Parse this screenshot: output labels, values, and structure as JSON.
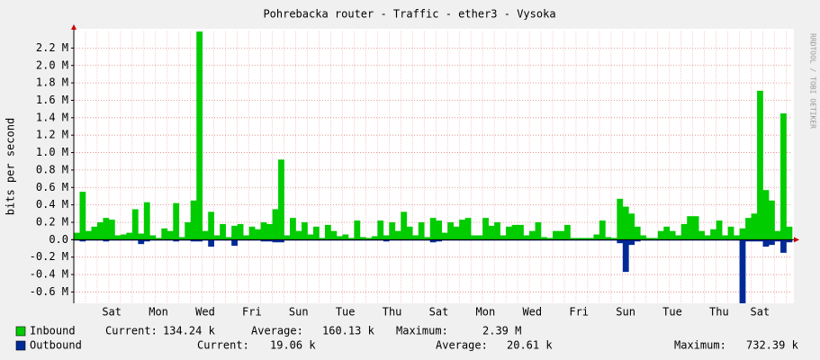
{
  "chart_data": {
    "type": "area-bars",
    "title": "Pohrebacka router - Traffic - ether3 - Vysoka",
    "y_label": "bits per second",
    "side_text": "RRDTOOL / TOBI OETIKER",
    "categories": [
      null,
      null,
      null,
      null,
      null,
      null,
      "Sat",
      null,
      null,
      null,
      null,
      null,
      null,
      null,
      "Mon",
      null,
      null,
      null,
      null,
      null,
      null,
      null,
      "Wed",
      null,
      null,
      null,
      null,
      null,
      null,
      null,
      "Fri",
      null,
      null,
      null,
      null,
      null,
      null,
      null,
      "Sun",
      null,
      null,
      null,
      null,
      null,
      null,
      null,
      "Tue",
      null,
      null,
      null,
      null,
      null,
      null,
      null,
      "Thu",
      null,
      null,
      null,
      null,
      null,
      null,
      null,
      "Sat",
      null,
      null,
      null,
      null,
      null,
      null,
      null,
      "Mon",
      null,
      null,
      null,
      null,
      null,
      null,
      null,
      "Wed",
      null,
      null,
      null,
      null,
      null,
      null,
      null,
      "Fri",
      null,
      null,
      null,
      null,
      null,
      null,
      null,
      "Sun",
      null,
      null,
      null,
      null,
      null,
      null,
      null,
      "Tue",
      null,
      null,
      null,
      null,
      null,
      null,
      null,
      "Thu",
      null,
      null,
      null,
      null,
      null,
      null,
      "Sat",
      null,
      null,
      null,
      null,
      null
    ],
    "ylim": [
      -0.73,
      2.39
    ],
    "yticks": [
      {
        "value": 2.2,
        "label": "2.2 M"
      },
      {
        "value": 2.0,
        "label": "2.0 M"
      },
      {
        "value": 1.8,
        "label": "1.8 M"
      },
      {
        "value": 1.6,
        "label": "1.6 M"
      },
      {
        "value": 1.4,
        "label": "1.4 M"
      },
      {
        "value": 1.2,
        "label": "1.2 M"
      },
      {
        "value": 1.0,
        "label": "1.0 M"
      },
      {
        "value": 0.8,
        "label": "0.8 M"
      },
      {
        "value": 0.6,
        "label": "0.6 M"
      },
      {
        "value": 0.4,
        "label": "0.4 M"
      },
      {
        "value": 0.2,
        "label": "0.2 M"
      },
      {
        "value": 0,
        "label": "0.0"
      },
      {
        "value": -0.2,
        "label": "-0.2 M"
      },
      {
        "value": -0.4,
        "label": "-0.4 M"
      },
      {
        "value": -0.6,
        "label": "-0.6 M"
      }
    ],
    "grid": true,
    "series": [
      {
        "name": "Inbound",
        "color": "#00cc00",
        "stats": [
          {
            "label": "Current:",
            "text": "134.24 k"
          },
          {
            "label": "Average:",
            "text": "160.13 k"
          },
          {
            "label": "Maximum:",
            "text": "2.39 M"
          }
        ],
        "values": [
          0.08,
          0.55,
          0.1,
          0.15,
          0.2,
          0.25,
          0.23,
          0.05,
          0.06,
          0.08,
          0.35,
          0.07,
          0.43,
          0.05,
          0.02,
          0.13,
          0.1,
          0.42,
          0.03,
          0.2,
          0.45,
          2.39,
          0.1,
          0.32,
          0.05,
          0.18,
          0.03,
          0.16,
          0.18,
          0.05,
          0.15,
          0.12,
          0.2,
          0.18,
          0.35,
          0.92,
          0.05,
          0.25,
          0.1,
          0.2,
          0.06,
          0.15,
          0.02,
          0.17,
          0.1,
          0.04,
          0.06,
          0.02,
          0.22,
          0.03,
          0.02,
          0.04,
          0.22,
          0.05,
          0.2,
          0.1,
          0.32,
          0.15,
          0.05,
          0.2,
          0.03,
          0.25,
          0.22,
          0.08,
          0.2,
          0.15,
          0.23,
          0.25,
          0.05,
          0.05,
          0.25,
          0.16,
          0.2,
          0.05,
          0.15,
          0.17,
          0.17,
          0.05,
          0.1,
          0.2,
          0.03,
          0.02,
          0.1,
          0.1,
          0.17,
          0.02,
          0.02,
          0.02,
          0.02,
          0.06,
          0.22,
          0.03,
          0.02,
          0.47,
          0.38,
          0.3,
          0.15,
          0.05,
          0.02,
          0.02,
          0.1,
          0.15,
          0.1,
          0.05,
          0.18,
          0.27,
          0.27,
          0.1,
          0.05,
          0.12,
          0.22,
          0.05,
          0.15,
          0.05,
          0.13,
          0.25,
          0.3,
          1.71,
          0.57,
          0.45,
          0.1,
          1.45,
          0.15
        ]
      },
      {
        "name": "Outbound",
        "color": "#002a97",
        "stats": [
          {
            "label": "Current:",
            "text": "19.06 k"
          },
          {
            "label": "Average:",
            "text": "20.61 k"
          },
          {
            "label": "Maximum:",
            "text": "732.39 k"
          }
        ],
        "values": [
          -0.01,
          -0.02,
          -0.01,
          -0.01,
          -0.01,
          -0.02,
          -0.01,
          -0.01,
          -0.01,
          -0.01,
          -0.01,
          -0.05,
          -0.02,
          -0.01,
          -0.01,
          -0.01,
          -0.01,
          -0.02,
          -0.01,
          -0.01,
          -0.02,
          -0.02,
          -0.01,
          -0.08,
          -0.01,
          -0.01,
          -0.01,
          -0.07,
          -0.01,
          -0.01,
          -0.01,
          -0.01,
          -0.02,
          -0.02,
          -0.03,
          -0.03,
          -0.01,
          -0.01,
          -0.01,
          -0.01,
          -0.01,
          -0.01,
          -0.01,
          -0.01,
          -0.01,
          -0.01,
          -0.01,
          -0.01,
          -0.01,
          -0.01,
          -0.01,
          -0.01,
          -0.01,
          -0.02,
          -0.01,
          -0.01,
          -0.01,
          -0.01,
          -0.01,
          -0.01,
          -0.01,
          -0.03,
          -0.02,
          -0.01,
          -0.01,
          -0.01,
          -0.01,
          -0.01,
          -0.01,
          -0.01,
          -0.01,
          -0.01,
          -0.01,
          -0.01,
          -0.01,
          -0.01,
          -0.01,
          -0.01,
          -0.01,
          -0.01,
          -0.01,
          -0.01,
          -0.01,
          -0.01,
          -0.01,
          -0.01,
          -0.01,
          -0.01,
          -0.01,
          -0.01,
          -0.01,
          -0.01,
          -0.01,
          -0.04,
          -0.37,
          -0.06,
          -0.02,
          -0.01,
          -0.01,
          -0.01,
          -0.01,
          -0.01,
          -0.01,
          -0.01,
          -0.01,
          -0.01,
          -0.01,
          -0.01,
          -0.01,
          -0.01,
          -0.01,
          -0.01,
          -0.01,
          -0.01,
          -0.73,
          -0.02,
          -0.02,
          -0.02,
          -0.08,
          -0.06,
          -0.02,
          -0.15,
          -0.03
        ]
      }
    ]
  }
}
